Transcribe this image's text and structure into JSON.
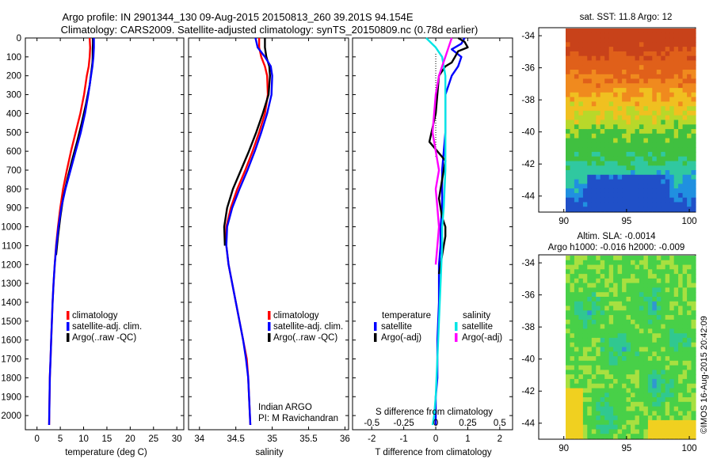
{
  "header": {
    "line1": "Argo profile: IN 2901344_130 09-Aug-2015 20150813_260 39.201S 94.154E",
    "line2": "Climatology: CARS2009. Satellite-adjusted climatology: synTS_20150809.nc (0.78d earlier)"
  },
  "colors": {
    "climatology": "#ff0000",
    "satellite": "#0000ff",
    "argo": "#000000",
    "sal_satellite": "#00e5e5",
    "sal_argo": "#ff00ff"
  },
  "chart_data": [
    {
      "type": "line",
      "name": "temperature_panel",
      "xlabel": "temperature (deg C)",
      "ylabel": "",
      "xlim": [
        -2.5,
        31.5
      ],
      "ylim": [
        2075,
        0
      ],
      "y_reversed": true,
      "xticks": [
        "0",
        "5",
        "10",
        "15",
        "20",
        "25",
        "30"
      ],
      "yticks": [
        "0",
        "100",
        "200",
        "300",
        "400",
        "500",
        "600",
        "700",
        "800",
        "900",
        "1000",
        "1100",
        "1200",
        "1300",
        "1400",
        "1500",
        "1600",
        "1700",
        "1800",
        "1900",
        "2000"
      ],
      "legend": {
        "position": "bottom-right",
        "items": [
          "climatology",
          "satellite-adj. clim.",
          "Argo(..raw -QC)"
        ]
      },
      "series": [
        {
          "name": "climatology",
          "color": "#ff0000",
          "x": [
            11.3,
            11.4,
            11.3,
            11.1,
            10.7,
            10.1,
            9.3,
            8.3,
            7.3,
            6.4,
            5.6,
            5.0,
            4.5,
            4.1,
            3.8,
            3.55,
            3.35,
            3.2,
            3.05,
            2.9,
            2.75,
            2.6
          ],
          "y": [
            0,
            50,
            100,
            150,
            200,
            300,
            400,
            500,
            600,
            700,
            800,
            900,
            1000,
            1100,
            1200,
            1300,
            1400,
            1500,
            1600,
            1700,
            1800,
            2050
          ]
        },
        {
          "name": "satellite-adj. clim.",
          "color": "#0000ff",
          "x": [
            12.2,
            12.2,
            12.1,
            11.9,
            11.6,
            11.0,
            10.3,
            9.4,
            8.3,
            7.2,
            6.1,
            5.2,
            4.6,
            4.15,
            3.8,
            3.55,
            3.35,
            3.2,
            3.05,
            2.9,
            2.75,
            2.6
          ],
          "y": [
            0,
            50,
            100,
            150,
            200,
            300,
            400,
            500,
            600,
            700,
            800,
            900,
            1000,
            1100,
            1200,
            1300,
            1400,
            1500,
            1600,
            1700,
            1800,
            2050
          ]
        },
        {
          "name": "Argo(..raw -QC)",
          "color": "#000000",
          "x": [
            12.0,
            12.0,
            11.95,
            11.95,
            11.9,
            11.8,
            11.3,
            10.5,
            9.6,
            8.6,
            7.5,
            6.5,
            5.6,
            5.0,
            4.5,
            4.1
          ],
          "y": [
            0,
            30,
            60,
            100,
            130,
            150,
            250,
            350,
            450,
            550,
            650,
            750,
            850,
            950,
            1050,
            1150
          ]
        }
      ]
    },
    {
      "type": "line",
      "name": "salinity_panel",
      "xlabel": "salinity",
      "ylabel": "",
      "xlim": [
        33.85,
        36.05
      ],
      "ylim": [
        2075,
        0
      ],
      "y_reversed": true,
      "xticks": [
        "34",
        "34.5",
        "35",
        "35.5",
        "36"
      ],
      "annotations": [
        "Indian ARGO",
        "PI: M Ravichandran"
      ],
      "legend": {
        "position": "bottom-right",
        "items": [
          "climatology",
          "satellite-adj. clim.",
          "Argo(..raw -QC)"
        ]
      },
      "series": [
        {
          "name": "climatology",
          "color": "#ff0000",
          "x": [
            34.82,
            34.82,
            34.85,
            34.9,
            34.93,
            34.94,
            34.9,
            34.82,
            34.73,
            34.63,
            34.52,
            34.43,
            34.37,
            34.37,
            34.4,
            34.45,
            34.5,
            34.55,
            34.6,
            34.65,
            34.67,
            34.7
          ],
          "y": [
            0,
            50,
            100,
            150,
            200,
            300,
            400,
            500,
            600,
            700,
            800,
            900,
            1000,
            1100,
            1200,
            1300,
            1400,
            1500,
            1600,
            1700,
            1800,
            2050
          ]
        },
        {
          "name": "satellite-adj. clim.",
          "color": "#0000ff",
          "x": [
            34.77,
            34.8,
            34.9,
            34.98,
            35.0,
            34.99,
            34.93,
            34.85,
            34.76,
            34.66,
            34.55,
            34.45,
            34.38,
            34.37,
            34.4,
            34.45,
            34.5,
            34.55,
            34.6,
            34.64,
            34.67,
            34.7
          ],
          "y": [
            0,
            50,
            100,
            150,
            200,
            300,
            400,
            500,
            600,
            700,
            800,
            900,
            1000,
            1100,
            1200,
            1300,
            1400,
            1500,
            1600,
            1700,
            1800,
            2050
          ]
        },
        {
          "name": "Argo(..raw -QC)",
          "color": "#000000",
          "x": [
            34.9,
            34.9,
            34.92,
            34.96,
            34.97,
            34.95,
            34.87,
            34.78,
            34.68,
            34.57,
            34.46,
            34.38,
            34.34,
            34.35
          ],
          "y": [
            0,
            50,
            100,
            150,
            200,
            300,
            400,
            500,
            600,
            700,
            800,
            900,
            1000,
            1100
          ]
        }
      ]
    },
    {
      "type": "line",
      "name": "difference_panel",
      "xlabel": "T difference from climatology",
      "top_axis_label": "S difference from climatology",
      "xlim": [
        -2.6,
        2.4
      ],
      "ylim": [
        2075,
        0
      ],
      "y_reversed": true,
      "xticks": [
        "-2",
        "-1",
        "0",
        "1",
        "2"
      ],
      "top_ticks": [
        "-0.5",
        "-0.25",
        "0",
        "0.25",
        "0.5"
      ],
      "legend": {
        "position": "bottom",
        "groups": [
          "temperature",
          "salinity"
        ],
        "items": [
          "satellite",
          "Argo(-adj)",
          "satellite",
          "Argo(-adj)"
        ]
      },
      "series": [
        {
          "name": "temperature satellite",
          "color": "#0000ff",
          "x": [
            0.9,
            0.8,
            0.5,
            0.8,
            0.7,
            0.5,
            0.3,
            0.3,
            0.2,
            0.2,
            0.15,
            0.15,
            0.1,
            0.1,
            0.05,
            0.05,
            0.0,
            0.0
          ],
          "y": [
            0,
            30,
            60,
            100,
            150,
            200,
            300,
            500,
            700,
            900,
            1000,
            1100,
            1200,
            1400,
            1600,
            1800,
            1900,
            2050
          ]
        },
        {
          "name": "temperature Argo(-adj)",
          "color": "#000000",
          "x": [
            0.7,
            0.9,
            1.0,
            0.7,
            0.6,
            0.5,
            0.3,
            0.1,
            0.0,
            -0.2,
            0.3,
            0.2,
            0.1,
            0.2,
            0.3,
            0.3,
            0.25,
            0.2,
            0.1
          ],
          "y": [
            0,
            20,
            50,
            70,
            100,
            130,
            150,
            200,
            400,
            550,
            650,
            750,
            850,
            950,
            1000,
            1050,
            1100,
            1150,
            1250
          ]
        },
        {
          "name": "salinity satellite",
          "color": "#00e5e5",
          "x": [
            -0.3,
            0.0,
            0.2,
            0.3,
            0.3,
            0.3,
            0.3,
            0.25,
            0.2,
            0.2,
            0.15,
            0.1,
            0.05,
            0.0,
            -0.05,
            -0.1
          ],
          "y": [
            0,
            50,
            100,
            200,
            300,
            500,
            700,
            900,
            1000,
            1100,
            1300,
            1500,
            1700,
            1900,
            2000,
            2050
          ]
        },
        {
          "name": "salinity Argo(-adj)",
          "color": "#ff00ff",
          "x": [
            0.5,
            0.4,
            0.3,
            0.2,
            0.1,
            0.0,
            -0.1,
            0.1,
            0.0,
            0.05,
            0.1,
            0.05,
            0.0
          ],
          "y": [
            0,
            50,
            100,
            150,
            200,
            300,
            500,
            700,
            800,
            900,
            1000,
            1100,
            1200
          ]
        }
      ]
    },
    {
      "type": "heatmap",
      "name": "sst_map",
      "title": "sat. SST: 11.8 Argo: 12",
      "xlim": [
        88,
        100.5
      ],
      "ylim": [
        -45,
        -33.5
      ],
      "xticks": [
        "90",
        "95",
        "100"
      ],
      "yticks": [
        "-34",
        "-36",
        "-38",
        "-40",
        "-42",
        "-44"
      ]
    },
    {
      "type": "heatmap",
      "name": "sla_map",
      "title": "Altim. SLA: -0.0014",
      "subtitle": "Argo h1000: -0.016 h2000: -0.009",
      "xlim": [
        88,
        100.5
      ],
      "ylim": [
        -45,
        -33.5
      ],
      "xticks": [
        "90",
        "95",
        "100"
      ],
      "yticks": [
        "-34",
        "-36",
        "-38",
        "-40",
        "-42",
        "-44"
      ]
    }
  ],
  "credit": "©IMOS 16-Aug-2015 20:42:09"
}
